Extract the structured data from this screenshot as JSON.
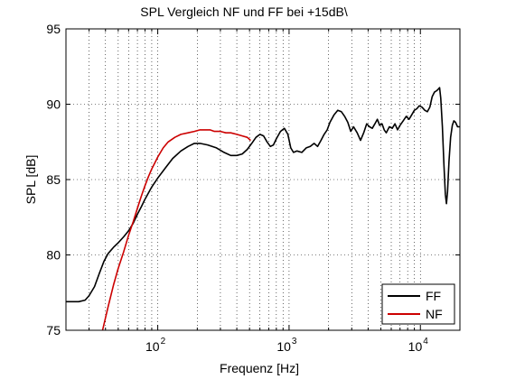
{
  "chart_data": {
    "type": "line",
    "title": "SPL Vergleich NF und FF bei +15dB\\",
    "xlabel": "Frequenz [Hz]",
    "ylabel": "SPL [dB]",
    "x_scale": "log",
    "xlim": [
      20,
      20000
    ],
    "ylim": [
      75,
      95
    ],
    "y_ticks": [
      75,
      80,
      85,
      90,
      95
    ],
    "x_ticks": [
      {
        "value": 100,
        "base": "10",
        "exp": "2"
      },
      {
        "value": 1000,
        "base": "10",
        "exp": "3"
      },
      {
        "value": 10000,
        "base": "10",
        "exp": "4"
      }
    ],
    "grid": true,
    "legend_position": "bottom-right",
    "series": [
      {
        "name": "FF",
        "color": "#000000",
        "points": [
          [
            20,
            76.9
          ],
          [
            25,
            76.9
          ],
          [
            28,
            77.0
          ],
          [
            30,
            77.3
          ],
          [
            33,
            77.9
          ],
          [
            36,
            78.8
          ],
          [
            39,
            79.6
          ],
          [
            42,
            80.1
          ],
          [
            46,
            80.5
          ],
          [
            50,
            80.8
          ],
          [
            55,
            81.2
          ],
          [
            60,
            81.6
          ],
          [
            65,
            82.1
          ],
          [
            70,
            82.7
          ],
          [
            75,
            83.2
          ],
          [
            80,
            83.7
          ],
          [
            90,
            84.5
          ],
          [
            100,
            85.1
          ],
          [
            115,
            85.8
          ],
          [
            130,
            86.4
          ],
          [
            150,
            86.9
          ],
          [
            170,
            87.2
          ],
          [
            190,
            87.4
          ],
          [
            210,
            87.4
          ],
          [
            240,
            87.3
          ],
          [
            280,
            87.1
          ],
          [
            320,
            86.8
          ],
          [
            360,
            86.6
          ],
          [
            400,
            86.6
          ],
          [
            440,
            86.7
          ],
          [
            480,
            87.0
          ],
          [
            520,
            87.4
          ],
          [
            560,
            87.8
          ],
          [
            600,
            88.0
          ],
          [
            640,
            87.9
          ],
          [
            680,
            87.5
          ],
          [
            720,
            87.2
          ],
          [
            760,
            87.3
          ],
          [
            800,
            87.7
          ],
          [
            860,
            88.2
          ],
          [
            920,
            88.4
          ],
          [
            980,
            88.0
          ],
          [
            1030,
            87.1
          ],
          [
            1080,
            86.8
          ],
          [
            1150,
            86.9
          ],
          [
            1250,
            86.8
          ],
          [
            1350,
            87.1
          ],
          [
            1450,
            87.2
          ],
          [
            1550,
            87.4
          ],
          [
            1650,
            87.2
          ],
          [
            1750,
            87.6
          ],
          [
            1850,
            88.0
          ],
          [
            1950,
            88.3
          ],
          [
            2050,
            88.8
          ],
          [
            2200,
            89.3
          ],
          [
            2350,
            89.6
          ],
          [
            2500,
            89.5
          ],
          [
            2650,
            89.2
          ],
          [
            2800,
            88.8
          ],
          [
            2950,
            88.2
          ],
          [
            3100,
            88.5
          ],
          [
            3300,
            88.1
          ],
          [
            3500,
            87.6
          ],
          [
            3700,
            88.1
          ],
          [
            3900,
            88.7
          ],
          [
            4100,
            88.5
          ],
          [
            4300,
            88.4
          ],
          [
            4500,
            88.7
          ],
          [
            4700,
            89.0
          ],
          [
            4900,
            88.6
          ],
          [
            5100,
            88.7
          ],
          [
            5300,
            88.3
          ],
          [
            5500,
            88.1
          ],
          [
            5800,
            88.5
          ],
          [
            6100,
            88.4
          ],
          [
            6400,
            88.7
          ],
          [
            6700,
            88.3
          ],
          [
            7000,
            88.6
          ],
          [
            7400,
            88.9
          ],
          [
            7800,
            89.2
          ],
          [
            8200,
            89.0
          ],
          [
            8600,
            89.3
          ],
          [
            9000,
            89.6
          ],
          [
            9400,
            89.7
          ],
          [
            9800,
            89.9
          ],
          [
            10300,
            89.8
          ],
          [
            10800,
            89.6
          ],
          [
            11300,
            89.5
          ],
          [
            11800,
            89.8
          ],
          [
            12300,
            90.5
          ],
          [
            12800,
            90.8
          ],
          [
            13300,
            90.9
          ],
          [
            13700,
            91.0
          ],
          [
            14000,
            91.1
          ],
          [
            14300,
            90.4
          ],
          [
            14700,
            88.5
          ],
          [
            15100,
            86.0
          ],
          [
            15500,
            84.0
          ],
          [
            15800,
            83.4
          ],
          [
            16100,
            84.2
          ],
          [
            16500,
            86.2
          ],
          [
            17000,
            87.8
          ],
          [
            17500,
            88.6
          ],
          [
            18000,
            88.9
          ],
          [
            18500,
            88.8
          ],
          [
            19200,
            88.5
          ],
          [
            20000,
            88.5
          ]
        ]
      },
      {
        "name": "NF",
        "color": "#cc0000",
        "points": [
          [
            38,
            75.0
          ],
          [
            42,
            76.6
          ],
          [
            46,
            78.0
          ],
          [
            50,
            79.1
          ],
          [
            55,
            80.2
          ],
          [
            60,
            81.3
          ],
          [
            65,
            82.2
          ],
          [
            70,
            83.1
          ],
          [
            75,
            83.9
          ],
          [
            80,
            84.6
          ],
          [
            85,
            85.2
          ],
          [
            90,
            85.7
          ],
          [
            95,
            86.1
          ],
          [
            100,
            86.5
          ],
          [
            110,
            87.1
          ],
          [
            120,
            87.5
          ],
          [
            135,
            87.8
          ],
          [
            150,
            88.0
          ],
          [
            170,
            88.1
          ],
          [
            190,
            88.2
          ],
          [
            210,
            88.3
          ],
          [
            230,
            88.3
          ],
          [
            250,
            88.3
          ],
          [
            270,
            88.2
          ],
          [
            300,
            88.2
          ],
          [
            330,
            88.1
          ],
          [
            360,
            88.1
          ],
          [
            400,
            88.0
          ],
          [
            440,
            87.9
          ],
          [
            480,
            87.8
          ],
          [
            510,
            87.6
          ]
        ]
      }
    ]
  }
}
